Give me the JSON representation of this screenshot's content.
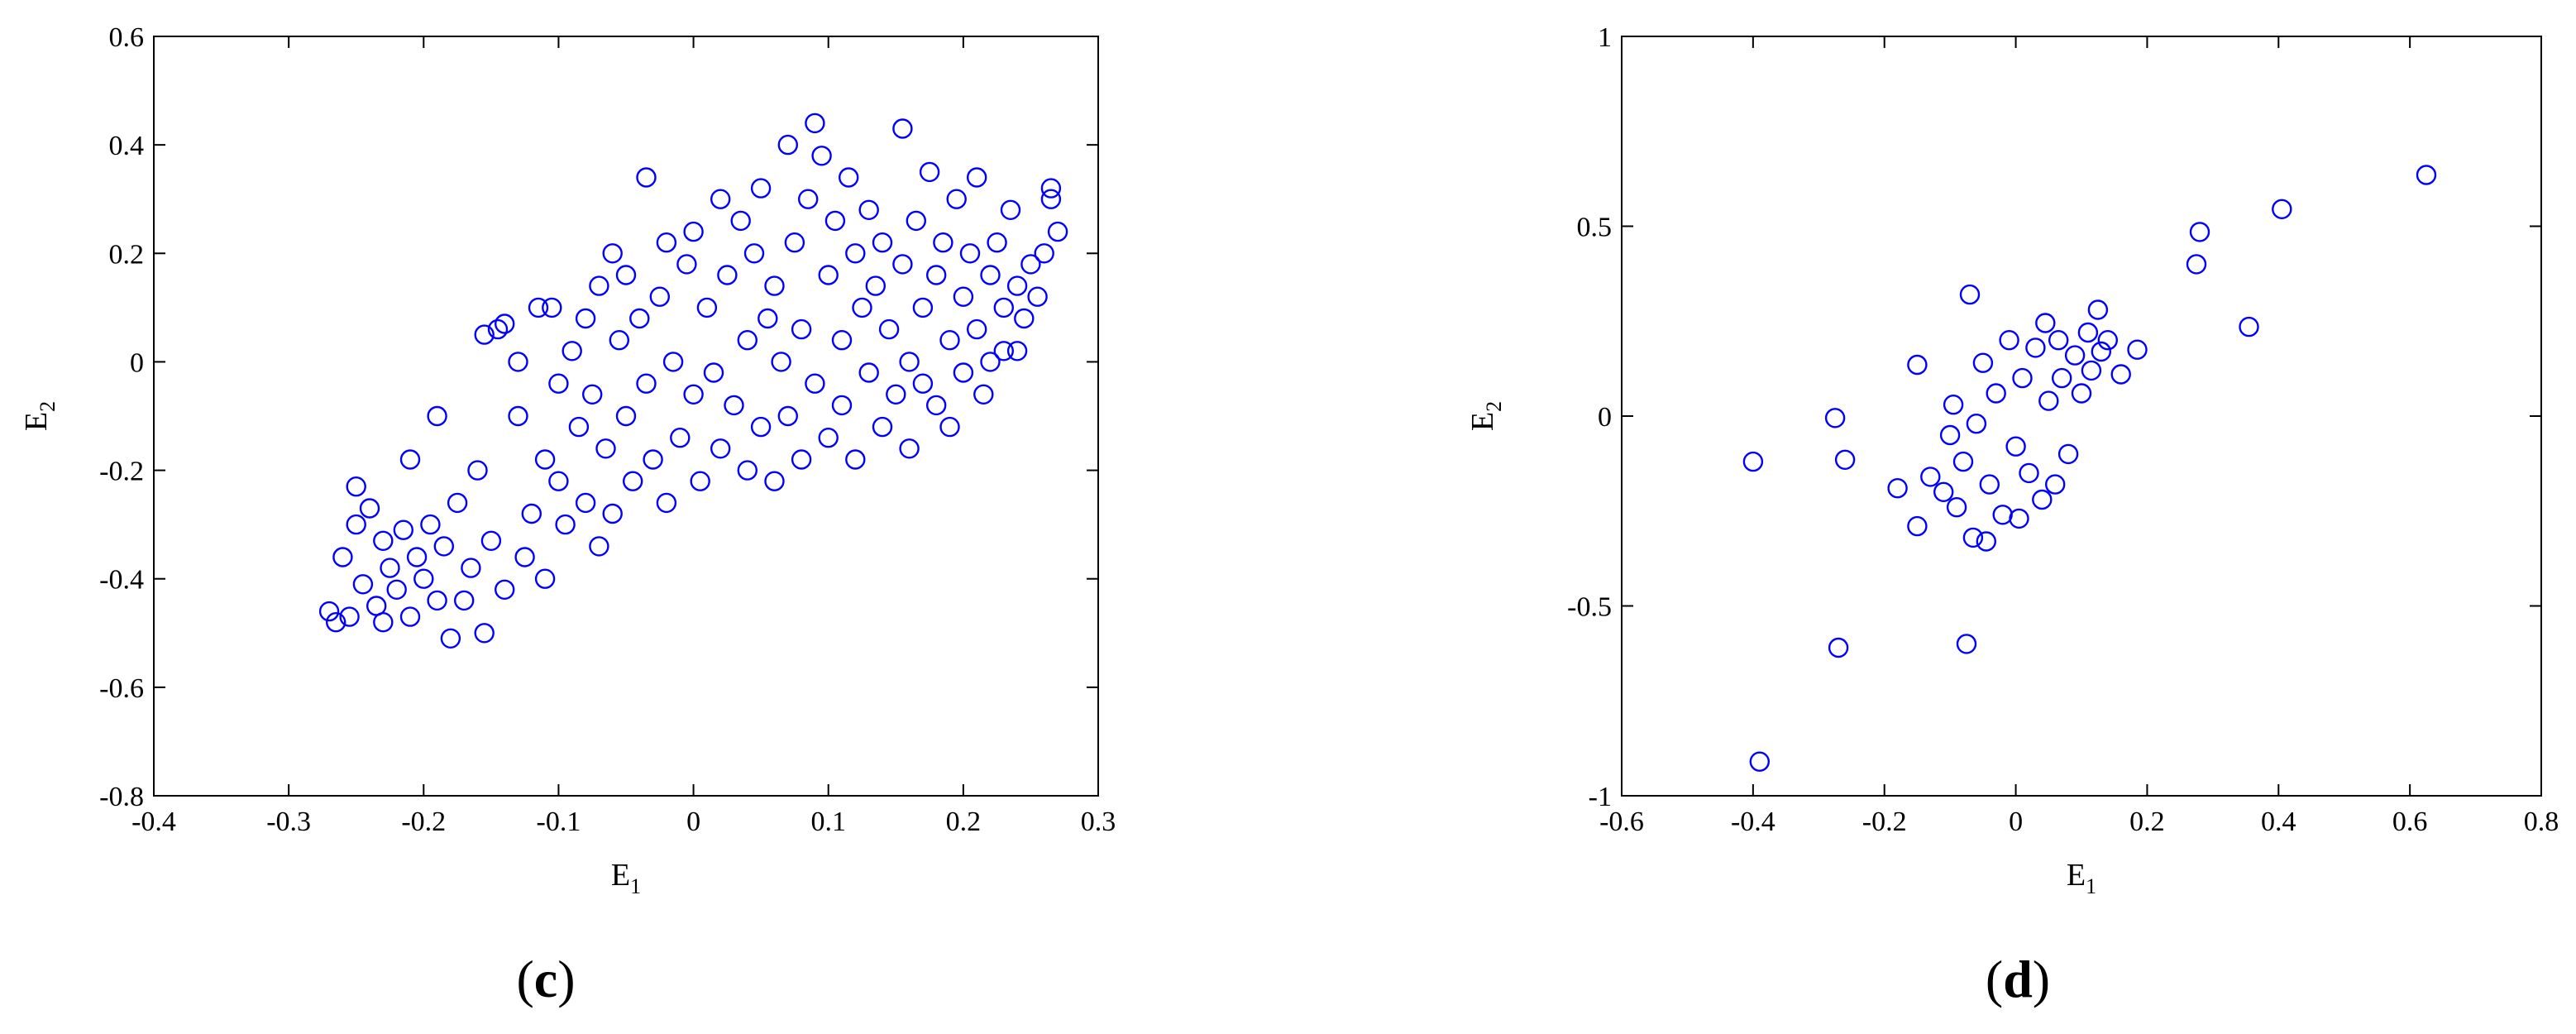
{
  "chart_data": [
    {
      "type": "scatter",
      "panel_label": "c",
      "xlabel": "E",
      "xlabel_sub": "1",
      "ylabel": "E",
      "ylabel_sub": "2",
      "xlim": [
        -0.4,
        0.3
      ],
      "ylim": [
        -0.8,
        0.6
      ],
      "xticks": [
        -0.4,
        -0.3,
        -0.2,
        -0.1,
        0,
        0.1,
        0.2,
        0.3
      ],
      "xtick_labels": [
        "-0.4",
        "-0.3",
        "-0.2",
        "-0.1",
        "0",
        "0.1",
        "0.2",
        "0.3"
      ],
      "yticks": [
        -0.8,
        -0.6,
        -0.4,
        -0.2,
        0,
        0.2,
        0.4,
        0.6
      ],
      "ytick_labels": [
        "-0.8",
        "-0.6",
        "-0.4",
        "-0.2",
        "0",
        "0.2",
        "0.4",
        "0.6"
      ],
      "marker": "open-circle",
      "color": "#0000FF",
      "grid": false,
      "points": [
        [
          -0.27,
          -0.46
        ],
        [
          -0.265,
          -0.48
        ],
        [
          -0.26,
          -0.36
        ],
        [
          -0.255,
          -0.47
        ],
        [
          -0.25,
          -0.23
        ],
        [
          -0.25,
          -0.3
        ],
        [
          -0.245,
          -0.41
        ],
        [
          -0.24,
          -0.27
        ],
        [
          -0.235,
          -0.45
        ],
        [
          -0.23,
          -0.48
        ],
        [
          -0.23,
          -0.33
        ],
        [
          -0.225,
          -0.38
        ],
        [
          -0.22,
          -0.42
        ],
        [
          -0.215,
          -0.31
        ],
        [
          -0.21,
          -0.18
        ],
        [
          -0.21,
          -0.47
        ],
        [
          -0.205,
          -0.36
        ],
        [
          -0.2,
          -0.4
        ],
        [
          -0.195,
          -0.3
        ],
        [
          -0.19,
          -0.1
        ],
        [
          -0.19,
          -0.44
        ],
        [
          -0.185,
          -0.34
        ],
        [
          -0.18,
          -0.51
        ],
        [
          -0.175,
          -0.26
        ],
        [
          -0.17,
          -0.44
        ],
        [
          -0.165,
          -0.38
        ],
        [
          -0.16,
          -0.2
        ],
        [
          -0.155,
          -0.5
        ],
        [
          -0.155,
          0.05
        ],
        [
          -0.15,
          -0.33
        ],
        [
          -0.145,
          0.06
        ],
        [
          -0.14,
          0.07
        ],
        [
          -0.14,
          -0.42
        ],
        [
          -0.13,
          -0.1
        ],
        [
          -0.13,
          0.0
        ],
        [
          -0.125,
          -0.36
        ],
        [
          -0.12,
          -0.28
        ],
        [
          -0.115,
          0.1
        ],
        [
          -0.11,
          -0.18
        ],
        [
          -0.11,
          -0.4
        ],
        [
          -0.105,
          0.1
        ],
        [
          -0.1,
          -0.22
        ],
        [
          -0.1,
          -0.04
        ],
        [
          -0.095,
          -0.3
        ],
        [
          -0.09,
          0.02
        ],
        [
          -0.085,
          -0.12
        ],
        [
          -0.08,
          0.08
        ],
        [
          -0.08,
          -0.26
        ],
        [
          -0.075,
          -0.06
        ],
        [
          -0.07,
          0.14
        ],
        [
          -0.07,
          -0.34
        ],
        [
          -0.065,
          -0.16
        ],
        [
          -0.06,
          0.2
        ],
        [
          -0.06,
          -0.28
        ],
        [
          -0.055,
          0.04
        ],
        [
          -0.05,
          -0.1
        ],
        [
          -0.05,
          0.16
        ],
        [
          -0.045,
          -0.22
        ],
        [
          -0.04,
          0.08
        ],
        [
          -0.035,
          0.34
        ],
        [
          -0.035,
          -0.04
        ],
        [
          -0.03,
          -0.18
        ],
        [
          -0.025,
          0.12
        ],
        [
          -0.02,
          -0.26
        ],
        [
          -0.02,
          0.22
        ],
        [
          -0.015,
          0.0
        ],
        [
          -0.01,
          -0.14
        ],
        [
          -0.005,
          0.18
        ],
        [
          0.0,
          -0.06
        ],
        [
          0.0,
          0.24
        ],
        [
          0.005,
          -0.22
        ],
        [
          0.01,
          0.1
        ],
        [
          0.015,
          -0.02
        ],
        [
          0.02,
          0.3
        ],
        [
          0.02,
          -0.16
        ],
        [
          0.025,
          0.16
        ],
        [
          0.03,
          -0.08
        ],
        [
          0.035,
          0.26
        ],
        [
          0.04,
          0.04
        ],
        [
          0.04,
          -0.2
        ],
        [
          0.045,
          0.2
        ],
        [
          0.05,
          -0.12
        ],
        [
          0.05,
          0.32
        ],
        [
          0.055,
          0.08
        ],
        [
          0.06,
          -0.22
        ],
        [
          0.06,
          0.14
        ],
        [
          0.065,
          0.0
        ],
        [
          0.07,
          0.4
        ],
        [
          0.07,
          -0.1
        ],
        [
          0.075,
          0.22
        ],
        [
          0.08,
          0.06
        ],
        [
          0.08,
          -0.18
        ],
        [
          0.085,
          0.3
        ],
        [
          0.09,
          0.44
        ],
        [
          0.09,
          -0.04
        ],
        [
          0.095,
          0.38
        ],
        [
          0.1,
          0.16
        ],
        [
          0.1,
          -0.14
        ],
        [
          0.105,
          0.26
        ],
        [
          0.11,
          0.04
        ],
        [
          0.11,
          -0.08
        ],
        [
          0.115,
          0.34
        ],
        [
          0.12,
          0.2
        ],
        [
          0.12,
          -0.18
        ],
        [
          0.125,
          0.1
        ],
        [
          0.13,
          -0.02
        ],
        [
          0.13,
          0.28
        ],
        [
          0.135,
          0.14
        ],
        [
          0.14,
          -0.12
        ],
        [
          0.14,
          0.22
        ],
        [
          0.145,
          0.06
        ],
        [
          0.15,
          -0.06
        ],
        [
          0.155,
          0.43
        ],
        [
          0.155,
          0.18
        ],
        [
          0.16,
          0.0
        ],
        [
          0.16,
          -0.16
        ],
        [
          0.165,
          0.26
        ],
        [
          0.17,
          0.1
        ],
        [
          0.17,
          -0.04
        ],
        [
          0.175,
          0.35
        ],
        [
          0.18,
          0.16
        ],
        [
          0.18,
          -0.08
        ],
        [
          0.185,
          0.22
        ],
        [
          0.19,
          0.04
        ],
        [
          0.19,
          -0.12
        ],
        [
          0.195,
          0.3
        ],
        [
          0.2,
          0.12
        ],
        [
          0.2,
          -0.02
        ],
        [
          0.205,
          0.2
        ],
        [
          0.21,
          0.34
        ],
        [
          0.21,
          0.06
        ],
        [
          0.215,
          -0.06
        ],
        [
          0.22,
          0.16
        ],
        [
          0.22,
          0.0
        ],
        [
          0.225,
          0.22
        ],
        [
          0.23,
          0.1
        ],
        [
          0.23,
          0.02
        ],
        [
          0.235,
          0.28
        ],
        [
          0.24,
          0.14
        ],
        [
          0.24,
          0.02
        ],
        [
          0.245,
          0.08
        ],
        [
          0.25,
          0.18
        ],
        [
          0.255,
          0.12
        ],
        [
          0.26,
          0.2
        ],
        [
          0.265,
          0.32
        ],
        [
          0.265,
          0.3
        ],
        [
          0.27,
          0.24
        ]
      ]
    },
    {
      "type": "scatter",
      "panel_label": "d",
      "xlabel": "E",
      "xlabel_sub": "1",
      "ylabel": "E",
      "ylabel_sub": "2",
      "xlim": [
        -0.6,
        0.8
      ],
      "ylim": [
        -1,
        1
      ],
      "xticks": [
        -0.6,
        -0.4,
        -0.2,
        0,
        0.2,
        0.4,
        0.6,
        0.8
      ],
      "xtick_labels": [
        "-0.6",
        "-0.4",
        "-0.2",
        "0",
        "0.2",
        "0.4",
        "0.6",
        "0.8"
      ],
      "yticks": [
        -1,
        -0.5,
        0,
        0.5,
        1
      ],
      "ytick_labels": [
        "-1",
        "-0.5",
        "0",
        "0.5",
        "1"
      ],
      "marker": "open-circle",
      "color": "#0000FF",
      "grid": false,
      "points": [
        [
          -0.4,
          -0.12
        ],
        [
          -0.39,
          -0.91
        ],
        [
          -0.27,
          -0.61
        ],
        [
          -0.275,
          -0.005
        ],
        [
          -0.26,
          -0.115
        ],
        [
          -0.18,
          -0.19
        ],
        [
          -0.15,
          0.135
        ],
        [
          -0.15,
          -0.29
        ],
        [
          -0.13,
          -0.16
        ],
        [
          -0.11,
          -0.2
        ],
        [
          -0.1,
          -0.05
        ],
        [
          -0.095,
          0.03
        ],
        [
          -0.09,
          -0.24
        ],
        [
          -0.08,
          -0.12
        ],
        [
          -0.075,
          -0.6
        ],
        [
          -0.07,
          0.32
        ],
        [
          -0.065,
          -0.32
        ],
        [
          -0.06,
          -0.02
        ],
        [
          -0.05,
          0.14
        ],
        [
          -0.045,
          -0.33
        ],
        [
          -0.04,
          -0.18
        ],
        [
          -0.03,
          0.06
        ],
        [
          -0.02,
          -0.26
        ],
        [
          -0.01,
          0.2
        ],
        [
          0.0,
          -0.08
        ],
        [
          0.005,
          -0.27
        ],
        [
          0.01,
          0.1
        ],
        [
          0.02,
          -0.15
        ],
        [
          0.03,
          0.18
        ],
        [
          0.04,
          -0.22
        ],
        [
          0.045,
          0.245
        ],
        [
          0.05,
          0.04
        ],
        [
          0.06,
          -0.18
        ],
        [
          0.065,
          0.2
        ],
        [
          0.07,
          0.1
        ],
        [
          0.08,
          -0.1
        ],
        [
          0.09,
          0.16
        ],
        [
          0.1,
          0.06
        ],
        [
          0.11,
          0.22
        ],
        [
          0.115,
          0.12
        ],
        [
          0.125,
          0.28
        ],
        [
          0.13,
          0.17
        ],
        [
          0.14,
          0.2
        ],
        [
          0.16,
          0.11
        ],
        [
          0.185,
          0.175
        ],
        [
          0.275,
          0.4
        ],
        [
          0.28,
          0.485
        ],
        [
          0.355,
          0.235
        ],
        [
          0.405,
          0.545
        ],
        [
          0.625,
          0.635
        ]
      ]
    }
  ]
}
